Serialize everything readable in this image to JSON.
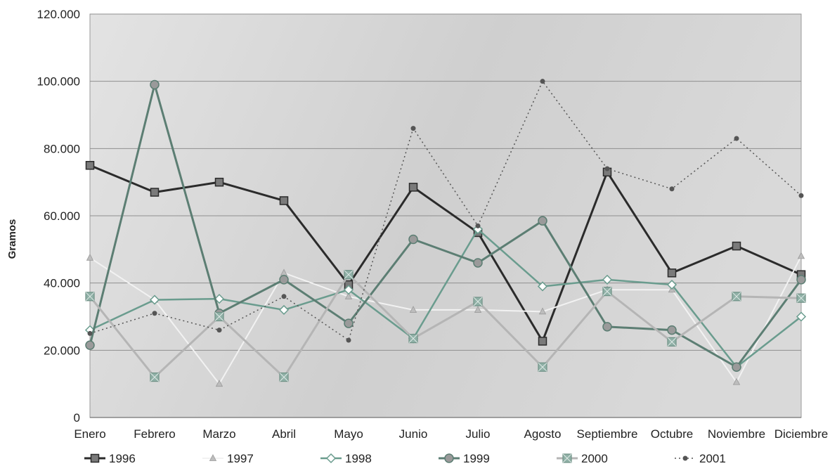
{
  "chart_data": {
    "type": "line",
    "title": "",
    "xlabel": "",
    "ylabel": "Gramos",
    "ylim": [
      0,
      120000
    ],
    "yticks": [
      0,
      20000,
      40000,
      60000,
      80000,
      100000,
      120000
    ],
    "ytick_labels": [
      "0",
      "20.000",
      "40.000",
      "60.000",
      "80.000",
      "100.000",
      "120.000"
    ],
    "grid": "horizontal",
    "legend_position": "bottom",
    "categories": [
      "Enero",
      "Febrero",
      "Marzo",
      "Abril",
      "Mayo",
      "Junio",
      "Julio",
      "Agosto",
      "Septiembre",
      "Octubre",
      "Noviembre",
      "Diciembre"
    ],
    "series": [
      {
        "name": "1996",
        "color": "#2b2b2b",
        "line": "solid",
        "width": 3,
        "marker": "square",
        "values": [
          75000,
          67000,
          70000,
          64500,
          39500,
          68500,
          55000,
          22700,
          73000,
          43000,
          51000,
          42500
        ]
      },
      {
        "name": "1997",
        "color": "#f2f2f2",
        "line": "solid",
        "width": 2,
        "marker": "triangle",
        "values": [
          47500,
          35000,
          10000,
          43000,
          36000,
          32000,
          32000,
          31500,
          38000,
          38000,
          10500,
          48000
        ]
      },
      {
        "name": "1998",
        "color": "#6a9c8e",
        "line": "solid",
        "width": 2.5,
        "marker": "diamond",
        "values": [
          26000,
          35000,
          35300,
          32000,
          38000,
          23500,
          56000,
          39000,
          41000,
          39500,
          15000,
          30000
        ]
      },
      {
        "name": "1999",
        "color": "#5c7e73",
        "line": "solid",
        "width": 3,
        "marker": "circle",
        "values": [
          21500,
          99000,
          31000,
          41000,
          28000,
          53000,
          46000,
          58500,
          27000,
          26000,
          15000,
          41000
        ]
      },
      {
        "name": "2000",
        "color": "#b5b5b5",
        "line": "solid",
        "width": 3,
        "marker": "boxx",
        "values": [
          36000,
          12000,
          30000,
          12000,
          42500,
          23500,
          34500,
          15000,
          37500,
          22500,
          36000,
          35500
        ]
      },
      {
        "name": "2001",
        "color": "#555555",
        "line": "dotted",
        "width": 1.5,
        "marker": "dot",
        "values": [
          25000,
          31000,
          26000,
          36000,
          23000,
          86000,
          57000,
          100000,
          74000,
          68000,
          83000,
          66000
        ]
      }
    ]
  }
}
